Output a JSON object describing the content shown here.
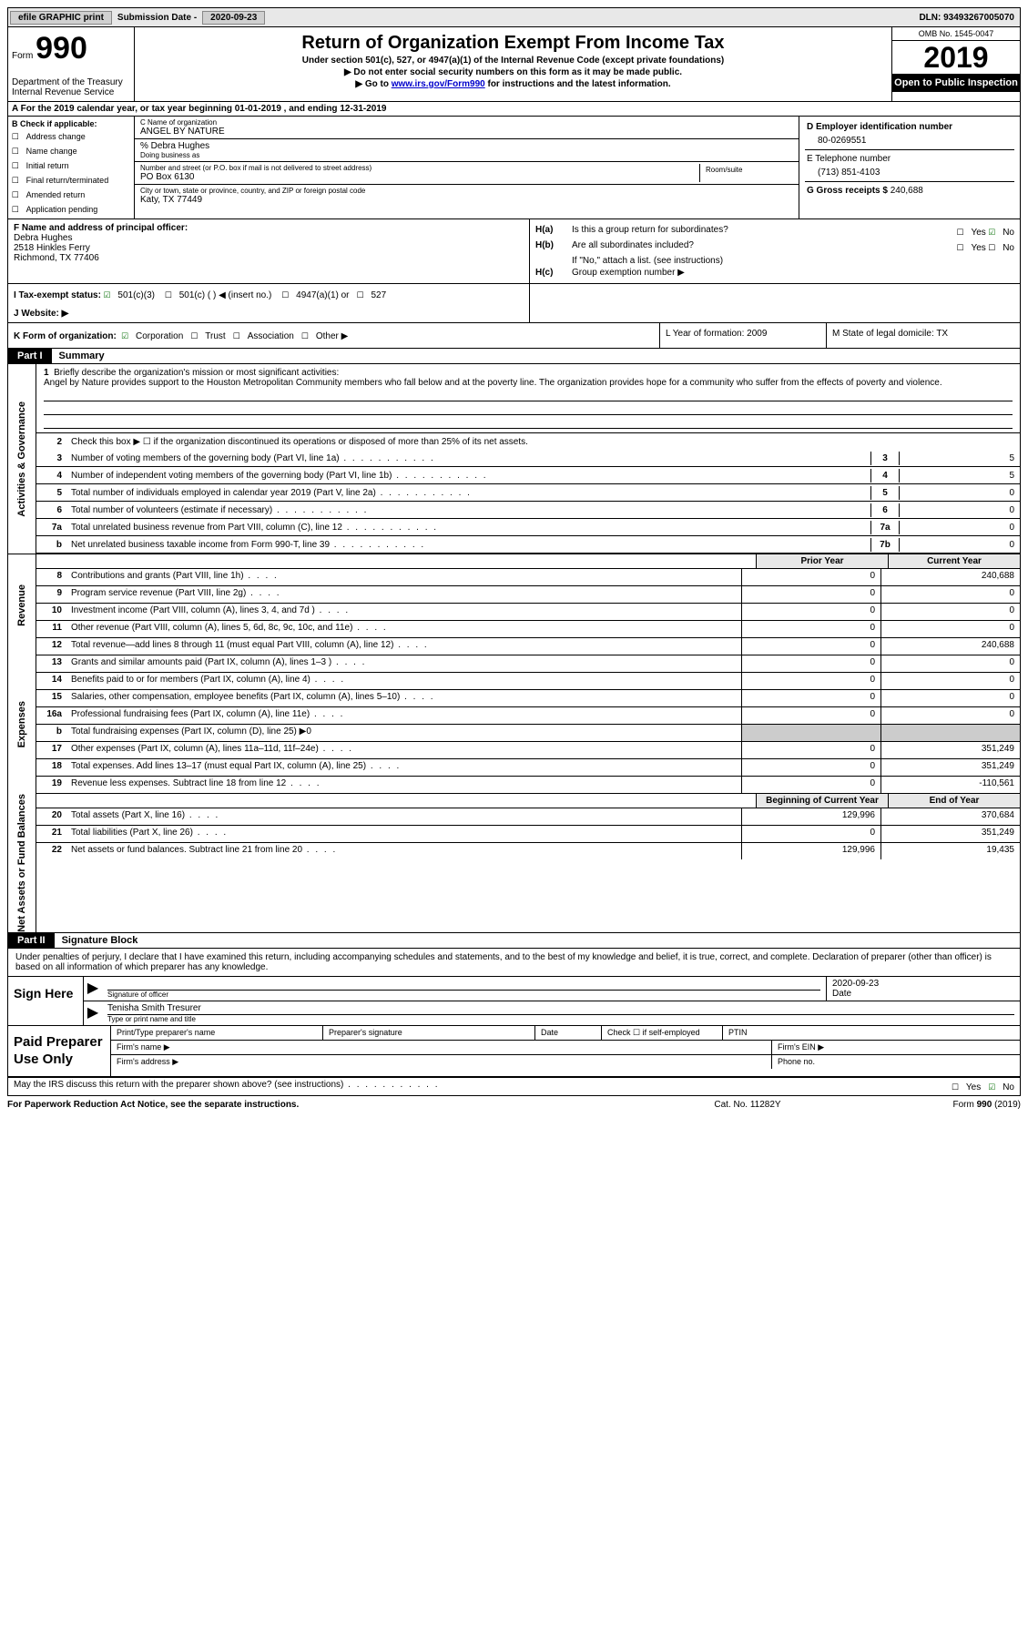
{
  "topbar": {
    "efile": "efile GRAPHIC print",
    "submission_label": "Submission Date -",
    "submission_date": "2020-09-23",
    "dln_label": "DLN:",
    "dln": "93493267005070"
  },
  "header": {
    "form_word": "Form",
    "form_number": "990",
    "dept": "Department of the Treasury\nInternal Revenue Service",
    "title": "Return of Organization Exempt From Income Tax",
    "subtitle": "Under section 501(c), 527, or 4947(a)(1) of the Internal Revenue Code (except private foundations)",
    "note1": "▶ Do not enter social security numbers on this form as it may be made public.",
    "note2_pre": "▶ Go to ",
    "note2_link": "www.irs.gov/Form990",
    "note2_post": " for instructions and the latest information.",
    "omb": "OMB No. 1545-0047",
    "year": "2019",
    "inspection": "Open to Public Inspection"
  },
  "rowA": "A For the 2019 calendar year, or tax year beginning 01-01-2019   , and ending 12-31-2019",
  "boxB": {
    "label": "B Check if applicable:",
    "items": [
      "Address change",
      "Name change",
      "Initial return",
      "Final return/terminated",
      "Amended return",
      "Application pending"
    ]
  },
  "boxC": {
    "name_label": "C Name of organization",
    "name": "ANGEL BY NATURE",
    "care_of": "% Debra Hughes",
    "dba_label": "Doing business as",
    "addr_label": "Number and street (or P.O. box if mail is not delivered to street address)",
    "room_label": "Room/suite",
    "addr": "PO Box 6130",
    "city_label": "City or town, state or province, country, and ZIP or foreign postal code",
    "city": "Katy, TX  77449"
  },
  "boxD": {
    "label": "D Employer identification number",
    "ein": "80-0269551",
    "tel_label": "E Telephone number",
    "tel": "(713) 851-4103",
    "gross_label": "G Gross receipts $",
    "gross": "240,688"
  },
  "boxF": {
    "label": "F  Name and address of principal officer:",
    "name": "Debra Hughes",
    "addr1": "2518 Hinkles Ferry",
    "addr2": "Richmond, TX  77406"
  },
  "boxH": {
    "a_label": "H(a)",
    "a_text": "Is this a group return for subordinates?",
    "a_no_checked": true,
    "b_label": "H(b)",
    "b_text": "Are all subordinates included?",
    "b_note": "If \"No,\" attach a list. (see instructions)",
    "c_label": "H(c)",
    "c_text": "Group exemption number ▶"
  },
  "rowI": {
    "label": "I  Tax-exempt status:",
    "opt1": "501(c)(3)",
    "opt2": "501(c) (   ) ◀ (insert no.)",
    "opt3": "4947(a)(1) or",
    "opt4": "527"
  },
  "rowJ": {
    "label": "J  Website: ▶"
  },
  "rowK": {
    "label": "K Form of organization:",
    "opts": [
      "Corporation",
      "Trust",
      "Association",
      "Other ▶"
    ],
    "corp_checked": true,
    "L": "L Year of formation: 2009",
    "M": "M State of legal domicile: TX"
  },
  "part1": {
    "header": "Part I",
    "title": "Summary",
    "line1_label": "1",
    "line1_text": "Briefly describe the organization's mission or most significant activities:",
    "line1_desc": "Angel by Nature provides support to the Houston Metropolitan Community members who fall below and at the poverty line. The organization provides hope for a community who suffer from the effects of poverty and violence.",
    "line2_label": "2",
    "line2_text": "Check this box ▶ ☐  if the organization discontinued its operations or disposed of more than 25% of its net assets.",
    "governance_lines": [
      {
        "n": "3",
        "t": "Number of voting members of the governing body (Part VI, line 1a)",
        "box": "3",
        "v": "5"
      },
      {
        "n": "4",
        "t": "Number of independent voting members of the governing body (Part VI, line 1b)",
        "box": "4",
        "v": "5"
      },
      {
        "n": "5",
        "t": "Total number of individuals employed in calendar year 2019 (Part V, line 2a)",
        "box": "5",
        "v": "0"
      },
      {
        "n": "6",
        "t": "Total number of volunteers (estimate if necessary)",
        "box": "6",
        "v": "0"
      },
      {
        "n": "7a",
        "t": "Total unrelated business revenue from Part VIII, column (C), line 12",
        "box": "7a",
        "v": "0"
      },
      {
        "n": "b",
        "t": "Net unrelated business taxable income from Form 990-T, line 39",
        "box": "7b",
        "v": "0"
      }
    ],
    "col_headers": {
      "prior": "Prior Year",
      "current": "Current Year"
    },
    "revenue_lines": [
      {
        "n": "8",
        "t": "Contributions and grants (Part VIII, line 1h)",
        "p": "0",
        "c": "240,688"
      },
      {
        "n": "9",
        "t": "Program service revenue (Part VIII, line 2g)",
        "p": "0",
        "c": "0"
      },
      {
        "n": "10",
        "t": "Investment income (Part VIII, column (A), lines 3, 4, and 7d )",
        "p": "0",
        "c": "0"
      },
      {
        "n": "11",
        "t": "Other revenue (Part VIII, column (A), lines 5, 6d, 8c, 9c, 10c, and 11e)",
        "p": "0",
        "c": "0"
      },
      {
        "n": "12",
        "t": "Total revenue—add lines 8 through 11 (must equal Part VIII, column (A), line 12)",
        "p": "0",
        "c": "240,688"
      }
    ],
    "expense_lines": [
      {
        "n": "13",
        "t": "Grants and similar amounts paid (Part IX, column (A), lines 1–3 )",
        "p": "0",
        "c": "0"
      },
      {
        "n": "14",
        "t": "Benefits paid to or for members (Part IX, column (A), line 4)",
        "p": "0",
        "c": "0"
      },
      {
        "n": "15",
        "t": "Salaries, other compensation, employee benefits (Part IX, column (A), lines 5–10)",
        "p": "0",
        "c": "0"
      },
      {
        "n": "16a",
        "t": "Professional fundraising fees (Part IX, column (A), line 11e)",
        "p": "0",
        "c": "0"
      },
      {
        "n": "b",
        "t": "Total fundraising expenses (Part IX, column (D), line 25) ▶0",
        "shaded": true
      },
      {
        "n": "17",
        "t": "Other expenses (Part IX, column (A), lines 11a–11d, 11f–24e)",
        "p": "0",
        "c": "351,249"
      },
      {
        "n": "18",
        "t": "Total expenses. Add lines 13–17 (must equal Part IX, column (A), line 25)",
        "p": "0",
        "c": "351,249"
      },
      {
        "n": "19",
        "t": "Revenue less expenses. Subtract line 18 from line 12",
        "p": "0",
        "c": "-110,561"
      }
    ],
    "balance_headers": {
      "begin": "Beginning of Current Year",
      "end": "End of Year"
    },
    "balance_lines": [
      {
        "n": "20",
        "t": "Total assets (Part X, line 16)",
        "p": "129,996",
        "c": "370,684"
      },
      {
        "n": "21",
        "t": "Total liabilities (Part X, line 26)",
        "p": "0",
        "c": "351,249"
      },
      {
        "n": "22",
        "t": "Net assets or fund balances. Subtract line 21 from line 20",
        "p": "129,996",
        "c": "19,435"
      }
    ]
  },
  "part2": {
    "header": "Part II",
    "title": "Signature Block",
    "declaration": "Under penalties of perjury, I declare that I have examined this return, including accompanying schedules and statements, and to the best of my knowledge and belief, it is true, correct, and complete. Declaration of preparer (other than officer) is based on all information of which preparer has any knowledge."
  },
  "sign": {
    "label": "Sign Here",
    "sig_label": "Signature of officer",
    "date_label": "Date",
    "date": "2020-09-23",
    "name": "Tenisha Smith Tresurer",
    "name_label": "Type or print name and title"
  },
  "preparer": {
    "label": "Paid Preparer Use Only",
    "h1": "Print/Type preparer's name",
    "h2": "Preparer's signature",
    "h3": "Date",
    "h4": "Check ☐ if self-employed",
    "h5": "PTIN",
    "firm_name": "Firm's name  ▶",
    "firm_ein": "Firm's EIN ▶",
    "firm_addr": "Firm's address ▶",
    "phone": "Phone no."
  },
  "footer": {
    "discuss": "May the IRS discuss this return with the preparer shown above? (see instructions)",
    "yes": "Yes",
    "no": "No",
    "no_checked": true,
    "paperwork": "For Paperwork Reduction Act Notice, see the separate instructions.",
    "cat": "Cat. No. 11282Y",
    "form": "Form 990 (2019)"
  },
  "vtabs": {
    "gov": "Activities & Governance",
    "rev": "Revenue",
    "exp": "Expenses",
    "net": "Net Assets or Fund Balances"
  }
}
